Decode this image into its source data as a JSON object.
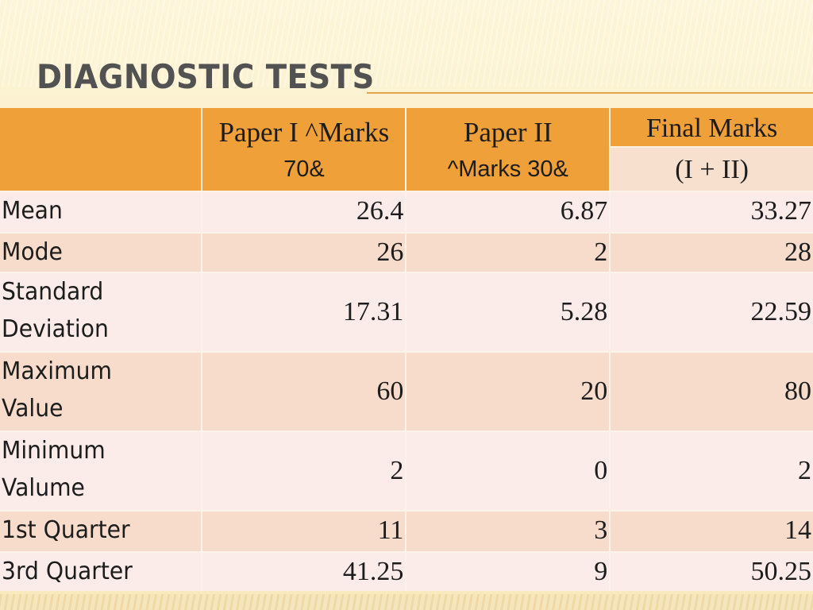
{
  "slide": {
    "title": "DIAGNOSTIC TESTS"
  },
  "table": {
    "headers": {
      "corner": "",
      "paper1_line1": "Paper I  ^Marks",
      "paper1_line2": "70&",
      "paper2_line1": "Paper II",
      "paper2_line2": "^Marks 30&",
      "final_line1": "Final Marks",
      "final_line2": "(I + II)"
    },
    "rows": [
      {
        "label": [
          "Mean"
        ],
        "values": [
          "26.4",
          "6.87",
          "33.27"
        ]
      },
      {
        "label": [
          "Mode"
        ],
        "values": [
          "26",
          "2",
          "28"
        ]
      },
      {
        "label": [
          "Standard",
          "Deviation"
        ],
        "values": [
          "17.31",
          "5.28",
          "22.59"
        ]
      },
      {
        "label": [
          "Maximum",
          "Value"
        ],
        "values": [
          "60",
          "20",
          "80"
        ]
      },
      {
        "label": [
          "Minimum",
          "Valume"
        ],
        "values": [
          "2",
          "0",
          "2"
        ]
      },
      {
        "label": [
          "1st Quarter"
        ],
        "values": [
          "11",
          "3",
          "14"
        ]
      },
      {
        "label": [
          "3rd Quarter"
        ],
        "values": [
          "41.25",
          "9",
          "50.25"
        ]
      }
    ]
  },
  "colors": {
    "header": "#f0a038",
    "row_light": "#fbecea",
    "row_dark": "#f8dccb",
    "title_text": "#525252",
    "accent_rule": "#e2a54b"
  }
}
